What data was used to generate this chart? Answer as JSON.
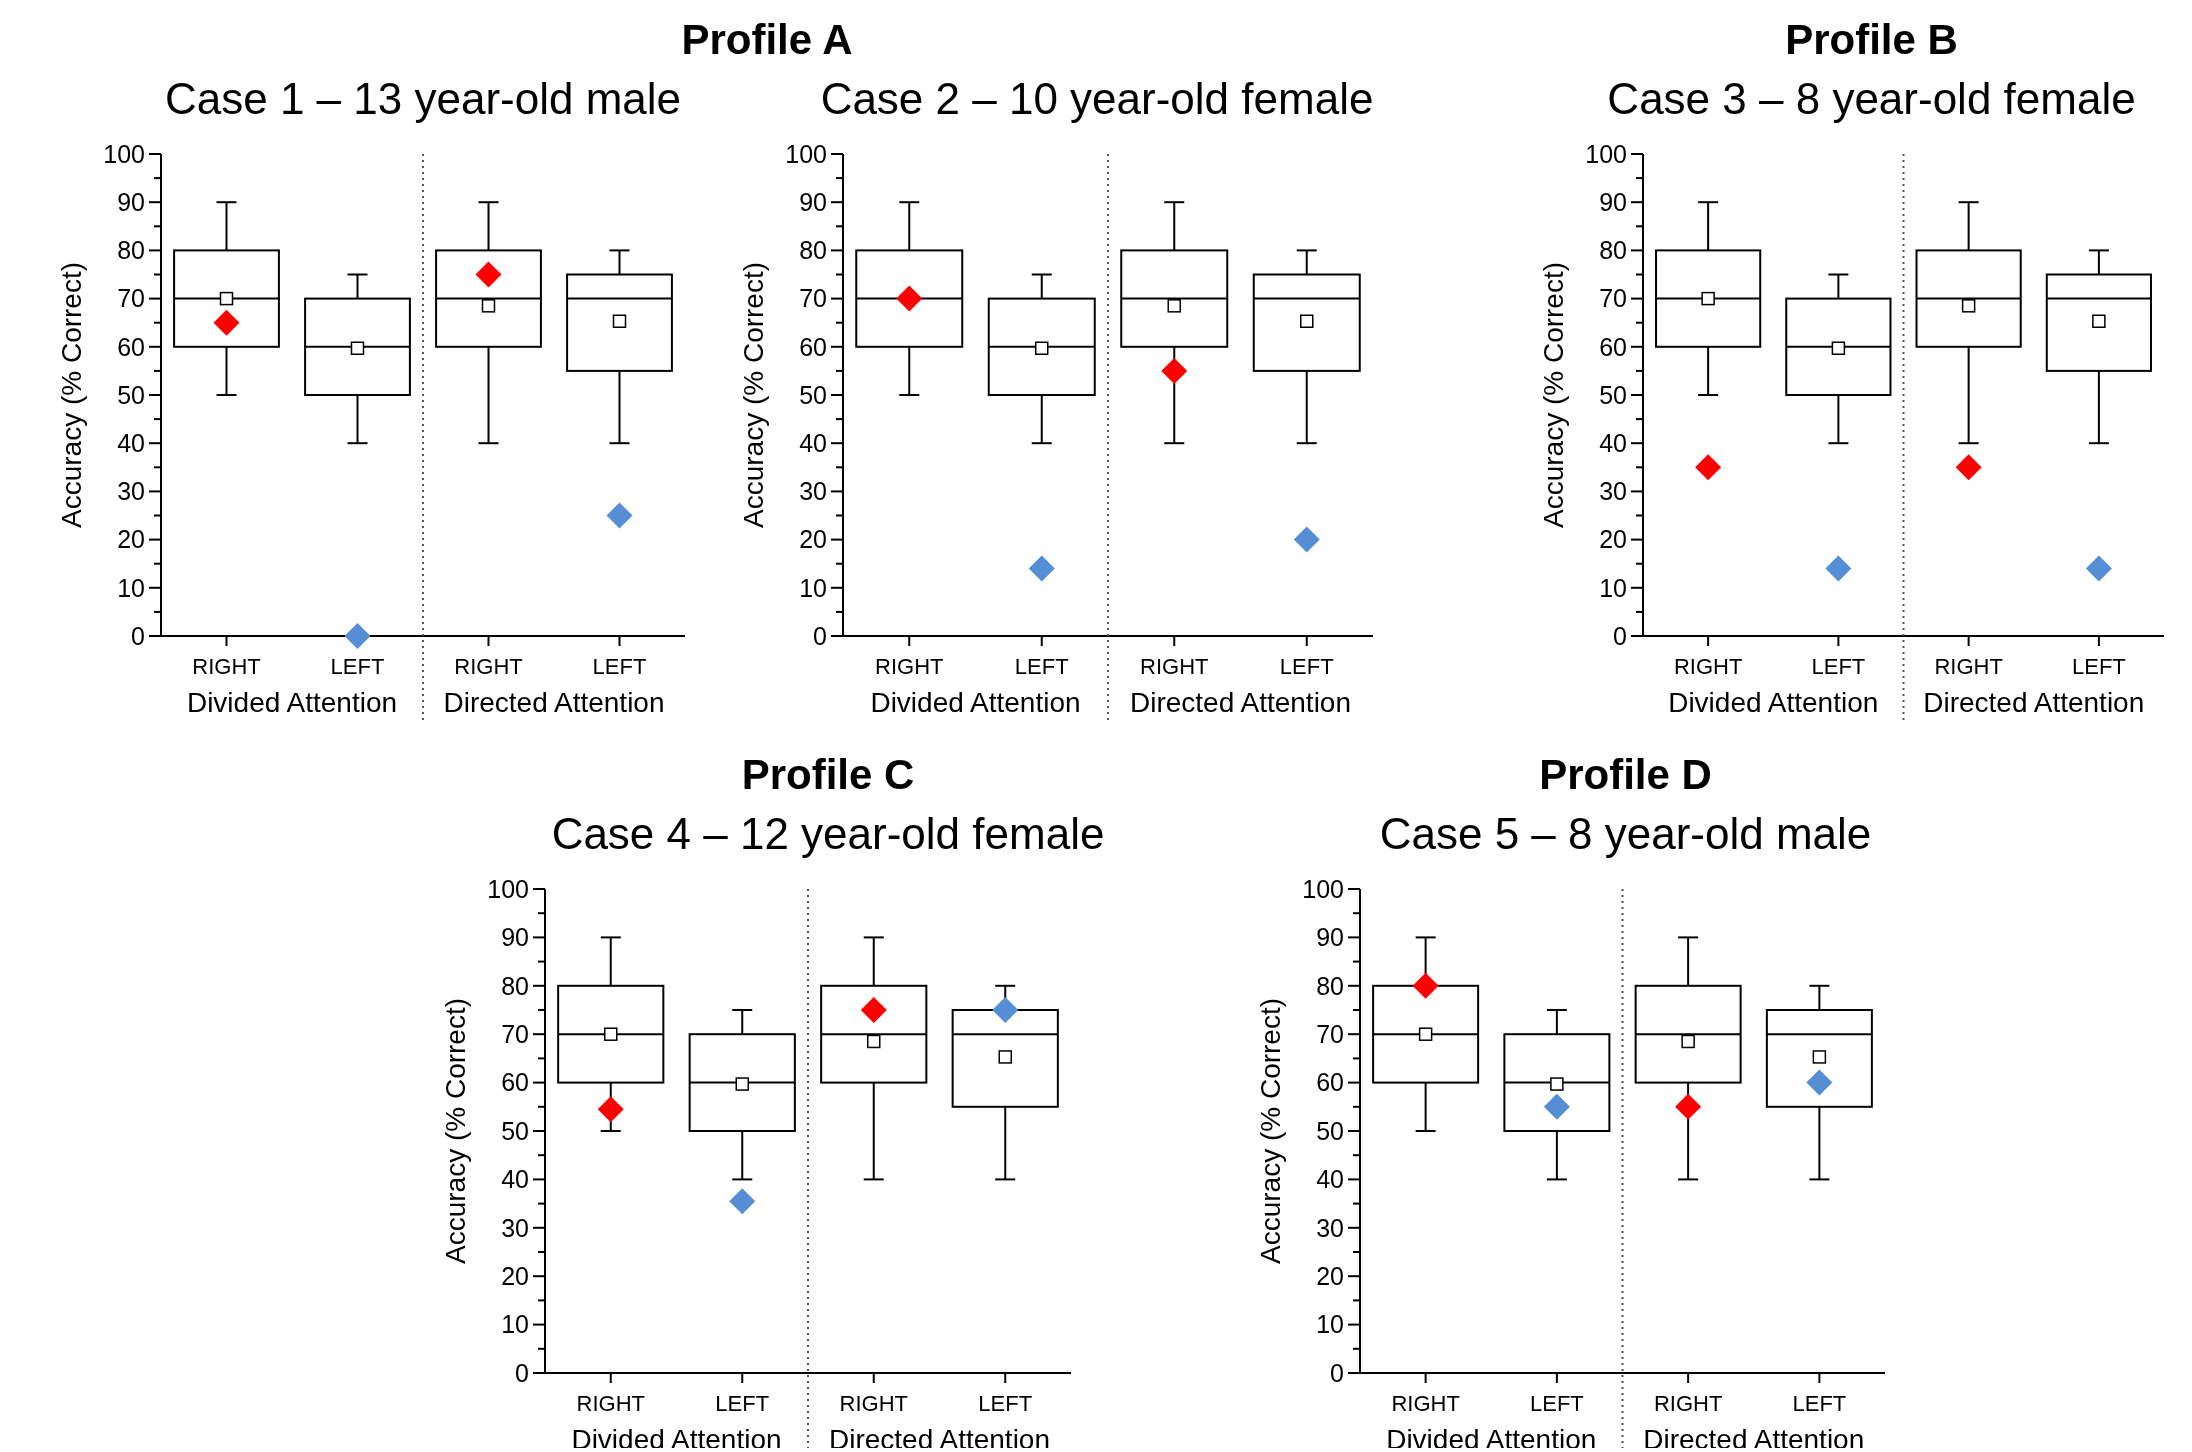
{
  "chart_data": [
    {
      "type": "box",
      "title": "Profile A",
      "subtitle": "Case 1 – 13 year-old male",
      "ylabel": "Accuracy (% Correct)",
      "categories": [
        "RIGHT",
        "LEFT",
        "RIGHT",
        "LEFT"
      ],
      "annotations": [
        "Divided Attention",
        "Directed Attention"
      ],
      "ylim": [
        0,
        100
      ],
      "yticks": [
        0,
        {
          "value": 5,
          "label": null
        },
        10,
        {
          "value": 15,
          "label": null
        },
        20,
        {
          "value": 25,
          "label": null
        },
        30,
        {
          "value": 35,
          "label": null
        },
        40,
        {
          "value": 45,
          "label": null
        },
        50,
        {
          "value": 55,
          "label": null
        },
        60,
        {
          "value": 65,
          "label": null
        },
        70,
        {
          "value": 75,
          "label": null
        },
        80,
        {
          "value": 85,
          "label": null
        },
        90,
        {
          "value": 95,
          "label": null
        },
        100
      ],
      "grid": false,
      "marker": "diamond",
      "series": [
        {
          "type": "box",
          "color": "#000000",
          "boxes": [
            {
              "low": 50,
              "q1": 60,
              "median": 70,
              "q3": 80,
              "high": 90,
              "mean": 70
            },
            {
              "low": 40,
              "q1": 50,
              "median": 60,
              "q3": 70,
              "high": 75,
              "mean": 59.7
            },
            {
              "low": 40,
              "q1": 60,
              "median": 70,
              "q3": 80,
              "high": 90,
              "mean": 68.5
            },
            {
              "low": 40,
              "q1": 55,
              "median": 70,
              "q3": 75,
              "high": 80,
              "mean": 65.3
            }
          ]
        },
        {
          "type": "scatter",
          "color": "#ff0000",
          "values": [
            65,
            null,
            75,
            null
          ]
        },
        {
          "type": "scatter",
          "color": "#558ed5",
          "values": [
            null,
            0,
            null,
            25
          ]
        }
      ]
    },
    {
      "type": "box",
      "subtitle": "Case 2 – 10 year-old female",
      "ylabel": "Accuracy (% Correct)",
      "categories": [
        "RIGHT",
        "LEFT",
        "RIGHT",
        "LEFT"
      ],
      "annotations": [
        "Divided Attention",
        "Directed Attention"
      ],
      "ylim": [
        0,
        100
      ],
      "yticks": [
        0,
        {
          "value": 5,
          "label": null
        },
        10,
        {
          "value": 15,
          "label": null
        },
        20,
        {
          "value": 25,
          "label": null
        },
        30,
        {
          "value": 35,
          "label": null
        },
        40,
        {
          "value": 45,
          "label": null
        },
        50,
        {
          "value": 55,
          "label": null
        },
        60,
        {
          "value": 65,
          "label": null
        },
        70,
        {
          "value": 75,
          "label": null
        },
        80,
        {
          "value": 85,
          "label": null
        },
        90,
        {
          "value": 95,
          "label": null
        },
        100
      ],
      "grid": false,
      "marker": "diamond",
      "series": [
        {
          "type": "box",
          "color": "#000000",
          "boxes": [
            {
              "low": 50,
              "q1": 60,
              "median": 70,
              "q3": 80,
              "high": 90
            },
            {
              "low": 40,
              "q1": 50,
              "median": 60,
              "q3": 70,
              "high": 75,
              "mean": 59.7
            },
            {
              "low": 40,
              "q1": 60,
              "median": 70,
              "q3": 80,
              "high": 90,
              "mean": 68.5
            },
            {
              "low": 40,
              "q1": 55,
              "median": 70,
              "q3": 75,
              "high": 80,
              "mean": 65.3
            }
          ]
        },
        {
          "type": "scatter",
          "color": "#ff0000",
          "values": [
            70,
            null,
            55,
            null
          ]
        },
        {
          "type": "scatter",
          "color": "#558ed5",
          "values": [
            null,
            14,
            null,
            20
          ]
        }
      ]
    },
    {
      "type": "box",
      "title": "Profile B",
      "subtitle": "Case 3 – 8 year-old female",
      "ylabel": "Accuracy (% Correct)",
      "categories": [
        "RIGHT",
        "LEFT",
        "RIGHT",
        "LEFT"
      ],
      "annotations": [
        "Divided Attention",
        "Directed Attention"
      ],
      "ylim": [
        0,
        100
      ],
      "yticks": [
        0,
        {
          "value": 5,
          "label": null
        },
        10,
        {
          "value": 15,
          "label": null
        },
        20,
        {
          "value": 25,
          "label": null
        },
        30,
        {
          "value": 35,
          "label": null
        },
        40,
        {
          "value": 45,
          "label": null
        },
        50,
        {
          "value": 55,
          "label": null
        },
        60,
        {
          "value": 65,
          "label": null
        },
        70,
        {
          "value": 75,
          "label": null
        },
        80,
        {
          "value": 85,
          "label": null
        },
        90,
        {
          "value": 95,
          "label": null
        },
        100
      ],
      "grid": false,
      "marker": "diamond",
      "series": [
        {
          "type": "box",
          "color": "#000000",
          "boxes": [
            {
              "low": 50,
              "q1": 60,
              "median": 70,
              "q3": 80,
              "high": 90,
              "mean": 70
            },
            {
              "low": 40,
              "q1": 50,
              "median": 60,
              "q3": 70,
              "high": 75,
              "mean": 59.7
            },
            {
              "low": 40,
              "q1": 60,
              "median": 70,
              "q3": 80,
              "high": 90,
              "mean": 68.5
            },
            {
              "low": 40,
              "q1": 55,
              "median": 70,
              "q3": 75,
              "high": 80,
              "mean": 65.3
            }
          ]
        },
        {
          "type": "scatter",
          "color": "#ff0000",
          "values": [
            35,
            null,
            35,
            null
          ]
        },
        {
          "type": "scatter",
          "color": "#558ed5",
          "values": [
            null,
            14,
            null,
            14
          ]
        }
      ]
    },
    {
      "type": "box",
      "title": "Profile C",
      "subtitle": "Case 4 – 12 year-old female",
      "ylabel": "Accuracy (% Correct)",
      "categories": [
        "RIGHT",
        "LEFT",
        "RIGHT",
        "LEFT"
      ],
      "annotations": [
        "Divided Attention",
        "Directed Attention"
      ],
      "ylim": [
        0,
        100
      ],
      "yticks": [
        0,
        {
          "value": 5,
          "label": null
        },
        10,
        {
          "value": 15,
          "label": null
        },
        20,
        {
          "value": 25,
          "label": null
        },
        30,
        {
          "value": 35,
          "label": null
        },
        40,
        {
          "value": 45,
          "label": null
        },
        50,
        {
          "value": 55,
          "label": null
        },
        60,
        {
          "value": 65,
          "label": null
        },
        70,
        {
          "value": 75,
          "label": null
        },
        80,
        {
          "value": 85,
          "label": null
        },
        90,
        {
          "value": 95,
          "label": null
        },
        100
      ],
      "grid": false,
      "marker": "diamond",
      "series": [
        {
          "type": "box",
          "color": "#000000",
          "boxes": [
            {
              "low": 50,
              "q1": 60,
              "median": 70,
              "q3": 80,
              "high": 90,
              "mean": 70
            },
            {
              "low": 40,
              "q1": 50,
              "median": 60,
              "q3": 70,
              "high": 75,
              "mean": 59.7
            },
            {
              "low": 40,
              "q1": 60,
              "median": 70,
              "q3": 80,
              "high": 90,
              "mean": 68.5
            },
            {
              "low": 40,
              "q1": 55,
              "median": 70,
              "q3": 75,
              "high": 80,
              "mean": 65.3
            }
          ]
        },
        {
          "type": "scatter",
          "color": "#ff0000",
          "values": [
            54.5,
            null,
            75,
            null
          ]
        },
        {
          "type": "scatter",
          "color": "#558ed5",
          "values": [
            null,
            35.5,
            null,
            75
          ]
        }
      ]
    },
    {
      "type": "box",
      "title": "Profile D",
      "subtitle": "Case 5 – 8 year-old male",
      "ylabel": "Accuracy (% Correct)",
      "categories": [
        "RIGHT",
        "LEFT",
        "RIGHT",
        "LEFT"
      ],
      "annotations": [
        "Divided Attention",
        "Directed Attention"
      ],
      "ylim": [
        0,
        100
      ],
      "yticks": [
        0,
        {
          "value": 5,
          "label": null
        },
        10,
        {
          "value": 15,
          "label": null
        },
        20,
        {
          "value": 25,
          "label": null
        },
        30,
        {
          "value": 35,
          "label": null
        },
        40,
        {
          "value": 45,
          "label": null
        },
        50,
        {
          "value": 55,
          "label": null
        },
        60,
        {
          "value": 65,
          "label": null
        },
        70,
        {
          "value": 75,
          "label": null
        },
        80,
        {
          "value": 85,
          "label": null
        },
        90,
        {
          "value": 95,
          "label": null
        },
        100
      ],
      "grid": false,
      "marker": "diamond",
      "series": [
        {
          "type": "box",
          "color": "#000000",
          "boxes": [
            {
              "low": 50,
              "q1": 60,
              "median": 70,
              "q3": 80,
              "high": 90,
              "mean": 70
            },
            {
              "low": 40,
              "q1": 50,
              "median": 60,
              "q3": 70,
              "high": 75,
              "mean": 59.7
            },
            {
              "low": 40,
              "q1": 60,
              "median": 70,
              "q3": 80,
              "high": 90,
              "mean": 68.5
            },
            {
              "low": 40,
              "q1": 55,
              "median": 70,
              "q3": 75,
              "high": 80,
              "mean": 65.3
            }
          ]
        },
        {
          "type": "scatter",
          "color": "#ff0000",
          "values": [
            80,
            null,
            55,
            null
          ]
        },
        {
          "type": "scatter",
          "color": "#558ed5",
          "values": [
            null,
            55,
            null,
            60
          ]
        }
      ]
    }
  ]
}
